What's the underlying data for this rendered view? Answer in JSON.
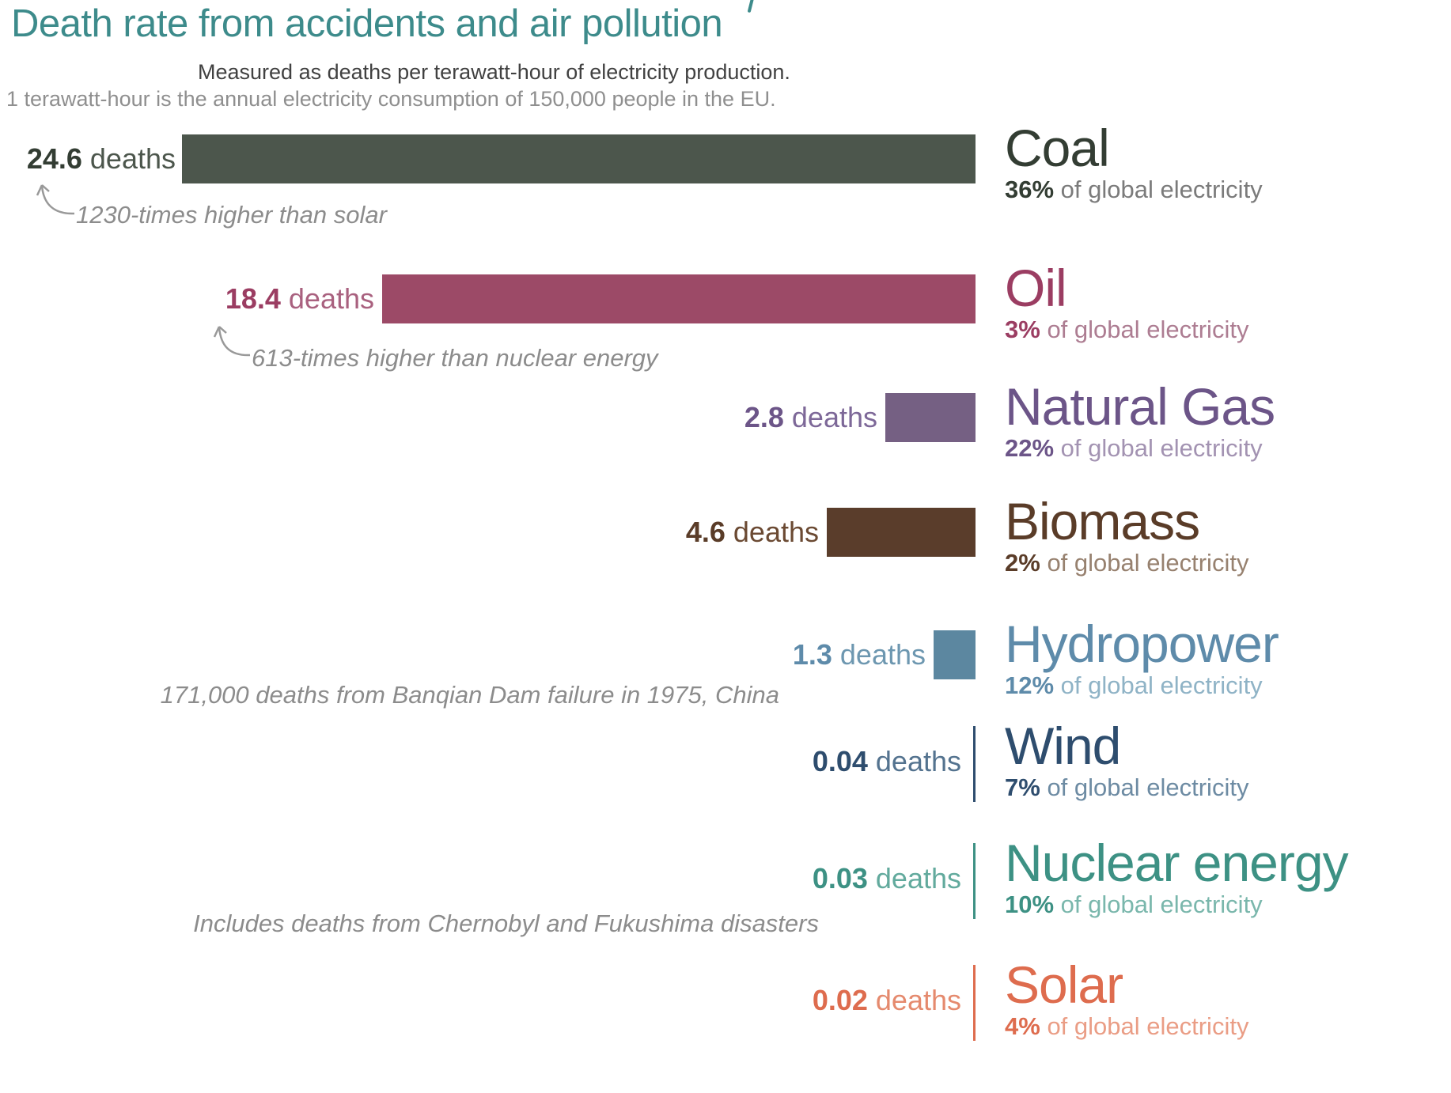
{
  "header": {
    "title": "Death rate from accidents and air pollution",
    "subtitle_bold": "Measured as deaths per terawatt-hour of electricity production.",
    "subtitle_light": "1 terawatt-hour is the annual electricity consumption of 150,000 people in the EU.",
    "title_color": "#3d8b8b"
  },
  "labels": {
    "deaths_word": "deaths",
    "share_suffix": "of global electricity",
    "annotation_color": "#8c8c8c"
  },
  "chart_data": {
    "type": "bar",
    "orientation": "horizontal",
    "title": "Death rate from accidents and air pollution",
    "value_unit": "deaths per terawatt-hour of electricity production",
    "xlim": [
      0,
      24.6
    ],
    "grid": false,
    "series": [
      {
        "name": "Coal",
        "value": 24.6,
        "value_label": "24.6",
        "share_pct": "36%",
        "bar_color": "#4c564c",
        "text_color": "#333d33",
        "value_word_color": "#4c564c",
        "suffix_color": "#7b7b7b",
        "annotation": "1230-times higher than solar"
      },
      {
        "name": "Oil",
        "value": 18.4,
        "value_label": "18.4",
        "share_pct": "3%",
        "bar_color": "#9c4a67",
        "text_color": "#9b3d62",
        "value_word_color": "#a9617f",
        "suffix_color": "#ad7d92",
        "annotation": "613-times higher than nuclear energy"
      },
      {
        "name": "Natural Gas",
        "value": 2.8,
        "value_label": "2.8",
        "share_pct": "22%",
        "bar_color": "#756083",
        "text_color": "#6c5588",
        "value_word_color": "#7d6898",
        "suffix_color": "#a393b2"
      },
      {
        "name": "Biomass",
        "value": 4.6,
        "value_label": "4.6",
        "share_pct": "2%",
        "bar_color": "#5a3d2b",
        "text_color": "#5a3c28",
        "value_word_color": "#6b4a33",
        "suffix_color": "#97816f"
      },
      {
        "name": "Hydropower",
        "value": 1.3,
        "value_label": "1.3",
        "share_pct": "12%",
        "bar_color": "#5c87a0",
        "text_color": "#5e8baa",
        "value_word_color": "#6d97b0",
        "suffix_color": "#8fb3c6",
        "annotation": "171,000 deaths from Banqian Dam failure in 1975, China"
      },
      {
        "name": "Wind",
        "value": 0.04,
        "value_label": "0.04",
        "share_pct": "7%",
        "bar_color": "#2e4d6e",
        "text_color": "#2e4d6e",
        "value_word_color": "#54738f",
        "suffix_color": "#6d8ba3"
      },
      {
        "name": "Nuclear energy",
        "value": 0.03,
        "value_label": "0.03",
        "share_pct": "10%",
        "bar_color": "#3d9184",
        "text_color": "#3d9184",
        "value_word_color": "#62aa9d",
        "suffix_color": "#7ab7ac",
        "annotation": "Includes deaths from Chernobyl and Fukushima disasters"
      },
      {
        "name": "Solar",
        "value": 0.02,
        "value_label": "0.02",
        "share_pct": "4%",
        "bar_color": "#de6c4e",
        "text_color": "#de6c4e",
        "value_word_color": "#e58a6e",
        "suffix_color": "#ea9d85"
      }
    ]
  }
}
